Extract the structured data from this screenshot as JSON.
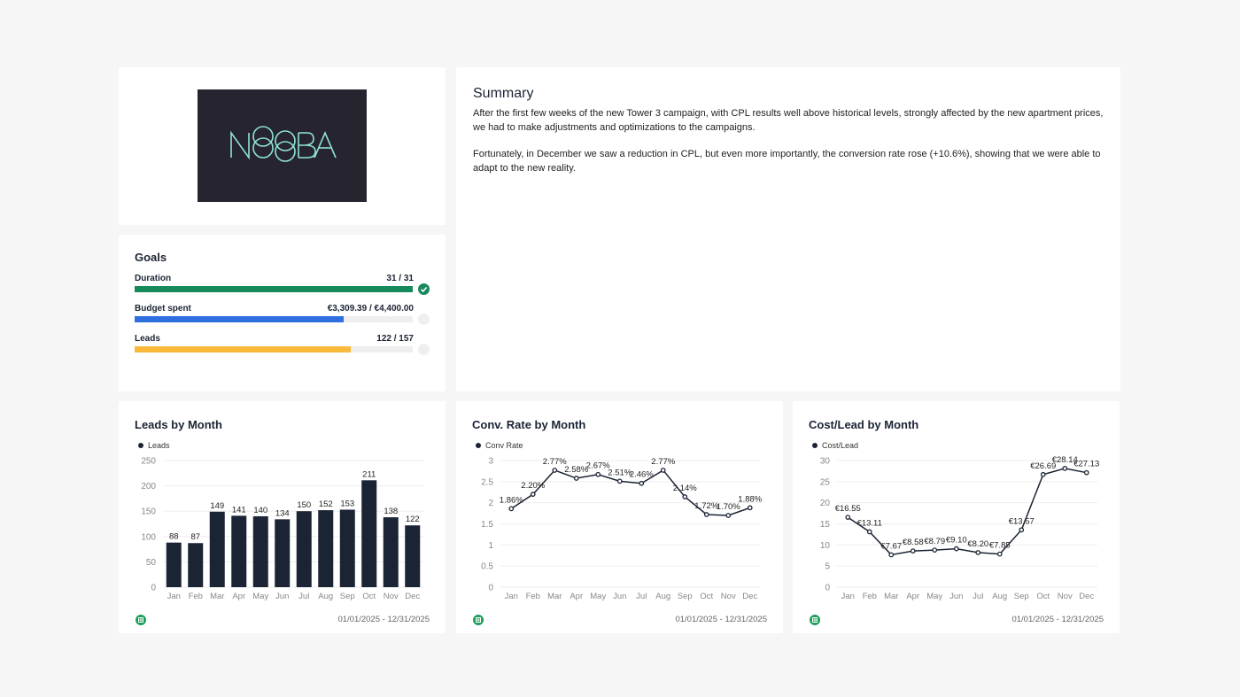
{
  "logo": {
    "text": "NOOBA",
    "bg_color": "#26242f",
    "fg_color": "#8fe3d6"
  },
  "summary": {
    "title": "Summary",
    "paragraphs": [
      "After the first few weeks of the new Tower 3 campaign, with CPL results well above historical levels, strongly affected by the new apartment prices, we had to make adjustments and optimizations to the campaigns.",
      "Fortunately, in December we saw a reduction in CPL, but even more importantly, the conversion rate rose (+10.6%), showing that we were able to adapt to the new reality."
    ]
  },
  "goals": {
    "title": "Goals",
    "items": [
      {
        "label": "Duration",
        "value": "31 / 31",
        "progress": 1.0,
        "color": "#178a5c",
        "complete": true
      },
      {
        "label": "Budget spent",
        "value": "€3,309.39 / €4,400.00",
        "progress": 0.752,
        "color": "#2f6fe0",
        "complete": false
      },
      {
        "label": "Leads",
        "value": "122 / 157",
        "progress": 0.777,
        "color": "#f9b93b",
        "complete": false
      }
    ]
  },
  "colors": {
    "series": "#1b2434",
    "sheets_icon": "#1e9e5a"
  },
  "chart_data": [
    {
      "type": "bar",
      "title": "Leads by Month",
      "legend": "Leads",
      "categories": [
        "Jan",
        "Feb",
        "Mar",
        "Apr",
        "May",
        "Jun",
        "Jul",
        "Aug",
        "Sep",
        "Oct",
        "Nov",
        "Dec"
      ],
      "series": [
        {
          "name": "Leads",
          "values": [
            88,
            87,
            149,
            141,
            140,
            134,
            150,
            152,
            153,
            211,
            138,
            122
          ]
        }
      ],
      "labels": [
        "88",
        "87",
        "149",
        "141",
        "140",
        "134",
        "150",
        "152",
        "153",
        "211",
        "138",
        "122"
      ],
      "yticks": [
        0,
        50,
        100,
        150,
        200,
        250
      ],
      "ylim": [
        0,
        250
      ],
      "date_range": "01/01/2025 - 12/31/2025"
    },
    {
      "type": "line",
      "title": "Conv. Rate by Month",
      "legend": "Conv Rate",
      "categories": [
        "Jan",
        "Feb",
        "Mar",
        "Apr",
        "May",
        "Jun",
        "Jul",
        "Aug",
        "Sep",
        "Oct",
        "Nov",
        "Dec"
      ],
      "series": [
        {
          "name": "Conv Rate",
          "values": [
            1.86,
            2.2,
            2.77,
            2.58,
            2.67,
            2.51,
            2.46,
            2.77,
            2.14,
            1.72,
            1.7,
            1.88
          ]
        }
      ],
      "labels": [
        "1.86%",
        "2.20%",
        "2.77%",
        "2.58%",
        "2.67%",
        "2.51%",
        "2.46%",
        "2.77%",
        "2.14%",
        "1.72%",
        "1.70%",
        "1.88%"
      ],
      "yticks": [
        0,
        0.5,
        1,
        1.5,
        2,
        2.5,
        3
      ],
      "ylim": [
        0,
        3
      ],
      "date_range": "01/01/2025 - 12/31/2025"
    },
    {
      "type": "line",
      "title": "Cost/Lead by Month",
      "legend": "Cost/Lead",
      "categories": [
        "Jan",
        "Feb",
        "Mar",
        "Apr",
        "May",
        "Jun",
        "Jul",
        "Aug",
        "Sep",
        "Oct",
        "Nov",
        "Dec"
      ],
      "series": [
        {
          "name": "Cost/Lead",
          "values": [
            16.55,
            13.11,
            7.67,
            8.58,
            8.79,
            9.1,
            8.2,
            7.85,
            13.57,
            26.69,
            28.14,
            27.13
          ]
        }
      ],
      "labels": [
        "€16.55",
        "€13.11",
        "€7.67",
        "€8.58",
        "€8.79",
        "€9.10",
        "€8.20",
        "€7.85",
        "€13.57",
        "€26.69",
        "€28.14",
        "€27.13"
      ],
      "yticks": [
        0,
        5,
        10,
        15,
        20,
        25,
        30
      ],
      "ylim": [
        0,
        30
      ],
      "date_range": "01/01/2025 - 12/31/2025"
    }
  ]
}
